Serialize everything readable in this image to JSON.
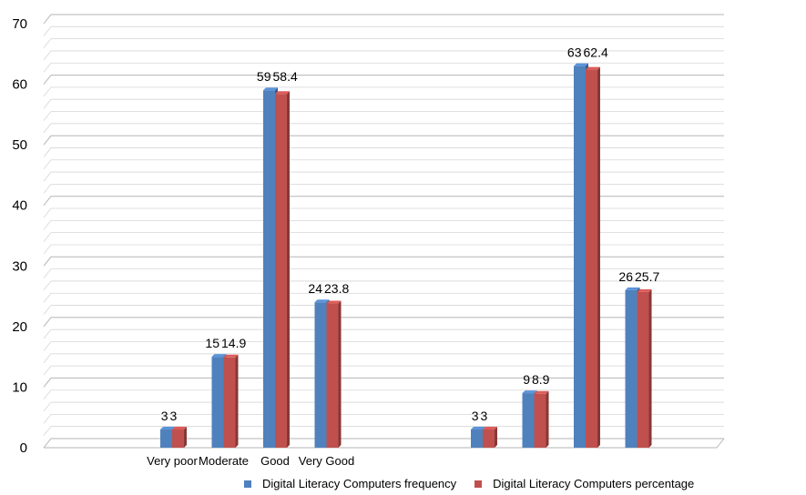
{
  "chart_data": {
    "type": "bar",
    "title": "",
    "xlabel": "",
    "ylabel": "",
    "ylim": [
      0,
      70
    ],
    "yticks": [
      0,
      10,
      20,
      30,
      40,
      50,
      60,
      70
    ],
    "grid": true,
    "legend_position": "bottom",
    "categories": [
      "Very poor",
      "Moderate",
      "Good",
      "Very Good",
      "",
      "",
      "",
      ""
    ],
    "series": [
      {
        "name": "Digital Literacy Computers frequency",
        "color": "#4F81BD",
        "values": [
          3,
          15,
          59,
          24,
          3,
          9,
          63,
          26
        ],
        "labels": [
          "3",
          "15",
          "59",
          "24",
          "3",
          "9",
          "63",
          "26"
        ]
      },
      {
        "name": "Digital Literacy Computers percentage",
        "color": "#C0504D",
        "values": [
          3,
          14.9,
          58.4,
          23.8,
          3,
          8.9,
          62.4,
          25.7
        ],
        "labels": [
          "3",
          "14.9",
          "58.4",
          "23.8",
          "3",
          "8.9",
          "62.4",
          "25.7"
        ]
      }
    ]
  }
}
